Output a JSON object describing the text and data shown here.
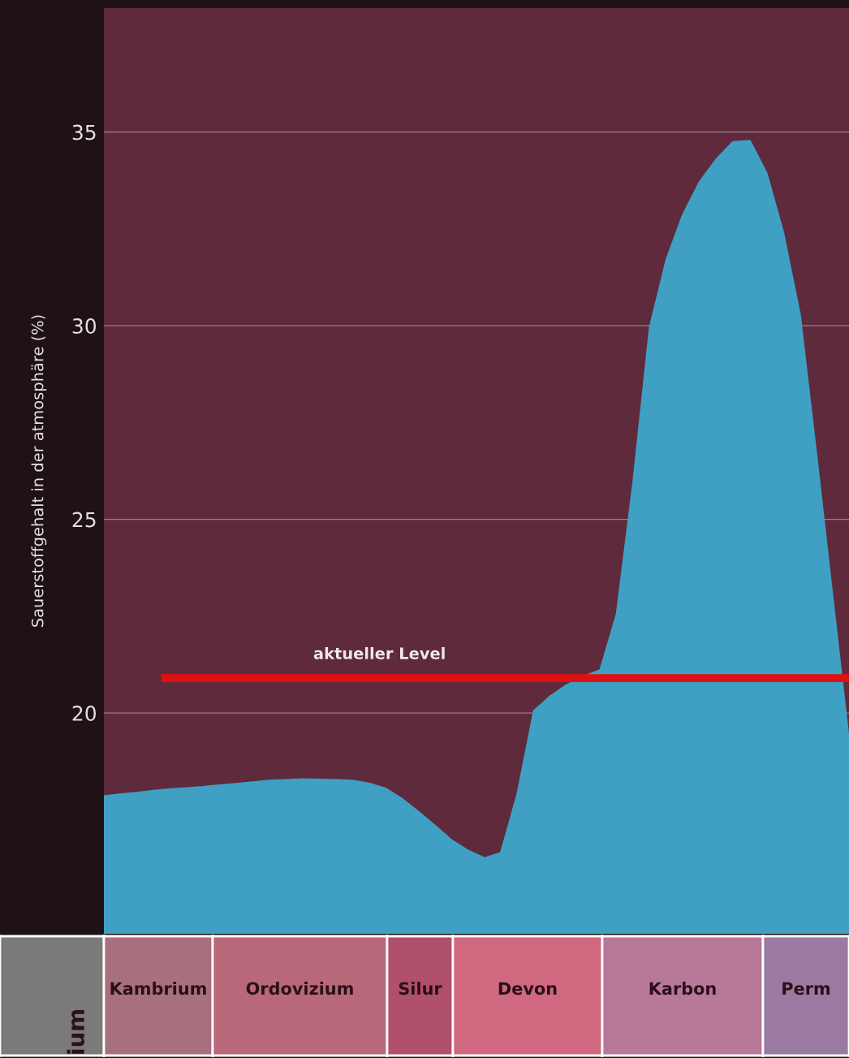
{
  "chart_data": [
    {
      "type": "area",
      "ylabel": "Sauerstoffgehalt in der atmosphäre (%)",
      "categories": [
        null,
        null,
        null,
        null,
        null,
        null,
        null,
        null,
        null,
        null,
        null,
        null,
        null,
        null,
        null,
        null,
        null,
        null,
        null,
        null,
        null,
        null,
        null,
        null,
        null,
        null,
        null,
        null,
        null,
        null,
        null,
        null,
        null,
        null,
        null,
        null,
        null,
        null,
        null,
        null,
        null,
        null,
        null,
        null,
        null,
        null
      ],
      "series": [
        {
          "color": "#3fa0c4",
          "values": [
            17.84,
            17.89,
            17.93,
            17.98,
            18.02,
            18.05,
            18.08,
            18.12,
            18.16,
            18.2,
            18.24,
            18.26,
            18.28,
            18.27,
            18.26,
            18.24,
            18.17,
            18.04,
            17.77,
            17.43,
            17.07,
            16.7,
            16.43,
            16.24,
            16.38,
            17.9,
            20.05,
            20.43,
            20.72,
            20.93,
            21.1,
            22.55,
            25.95,
            29.95,
            31.7,
            32.86,
            33.7,
            34.28,
            34.73,
            34.76,
            33.93,
            32.4,
            30.3,
            26.66,
            22.9,
            19.16
          ]
        }
      ],
      "ylim": [
        14.3,
        38.2
      ],
      "yticks": [
        20,
        25,
        30,
        35
      ],
      "tick_labels": "y",
      "grid": "y",
      "ref_lines": [
        {
          "axis": "y",
          "value": 20.9,
          "label": "aktueller Level",
          "color": "#e01010"
        }
      ]
    },
    {
      "type": "other",
      "annotations": [
        "ium",
        "Kambrium",
        "Ordovizium",
        "Silur",
        "Devon",
        "Karbon",
        "Perm"
      ]
    }
  ]
}
